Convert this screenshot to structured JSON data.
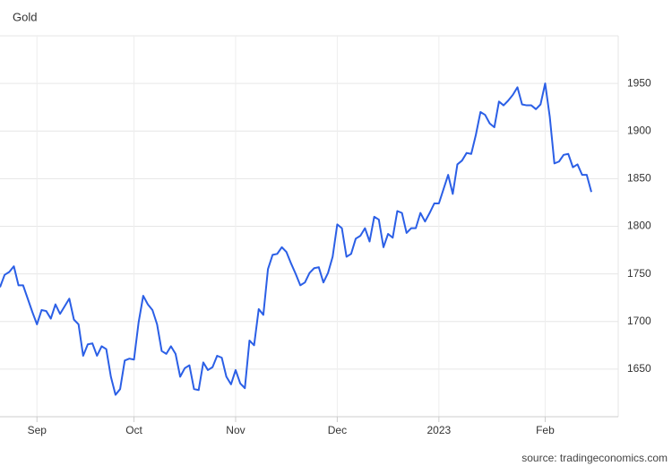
{
  "chart_data": {
    "type": "line",
    "title": "Gold",
    "source": "source: tradingeconomics.com",
    "categories": [
      null,
      null,
      null,
      null,
      null,
      null,
      null,
      null,
      "Sep",
      null,
      null,
      null,
      null,
      null,
      null,
      null,
      null,
      null,
      null,
      null,
      null,
      null,
      null,
      null,
      null,
      null,
      null,
      null,
      null,
      "Oct",
      null,
      null,
      null,
      null,
      null,
      null,
      null,
      null,
      null,
      null,
      null,
      null,
      null,
      null,
      null,
      null,
      null,
      null,
      null,
      null,
      null,
      "Nov",
      null,
      null,
      null,
      null,
      null,
      null,
      null,
      null,
      null,
      null,
      null,
      null,
      null,
      null,
      null,
      null,
      null,
      null,
      null,
      null,
      null,
      "Dec",
      null,
      null,
      null,
      null,
      null,
      null,
      null,
      null,
      null,
      null,
      null,
      null,
      null,
      null,
      null,
      null,
      null,
      null,
      null,
      null,
      null,
      "2023",
      null,
      null,
      null,
      null,
      null,
      null,
      null,
      null,
      null,
      null,
      null,
      null,
      null,
      null,
      null,
      null,
      null,
      null,
      null,
      null,
      null,
      null,
      "Feb",
      null,
      null,
      null,
      null,
      null,
      null,
      null,
      null,
      null,
      null
    ],
    "series": [
      {
        "name": "Gold",
        "color": "#2b5fe6",
        "values": [
          1736,
          1749,
          1752,
          1758,
          1738,
          1738,
          1724,
          1710,
          1697,
          1712,
          1711,
          1703,
          1718,
          1708,
          1716,
          1724,
          1702,
          1697,
          1664,
          1676,
          1677,
          1664,
          1674,
          1671,
          1642,
          1623,
          1629,
          1659,
          1661,
          1660,
          1699,
          1727,
          1718,
          1712,
          1697,
          1669,
          1666,
          1674,
          1666,
          1642,
          1651,
          1654,
          1629,
          1628,
          1657,
          1649,
          1652,
          1664,
          1662,
          1642,
          1634,
          1649,
          1635,
          1630,
          1680,
          1675,
          1713,
          1707,
          1755,
          1770,
          1771,
          1778,
          1773,
          1761,
          1750,
          1738,
          1741,
          1751,
          1756,
          1757,
          1741,
          1751,
          1768,
          1802,
          1798,
          1768,
          1771,
          1787,
          1790,
          1798,
          1784,
          1810,
          1807,
          1778,
          1792,
          1788,
          1816,
          1814,
          1793,
          1798,
          1798,
          1814,
          1805,
          1814,
          1824,
          1824,
          1839,
          1854,
          1834,
          1865,
          1869,
          1877,
          1876,
          1896,
          1920,
          1917,
          1908,
          1904,
          1931,
          1927,
          1932,
          1938,
          1946,
          1928,
          1927,
          1927,
          1923,
          1928,
          1950,
          1915,
          1866,
          1868,
          1875,
          1876,
          1862,
          1865,
          1854,
          1854,
          1836
        ]
      }
    ],
    "ylim": [
      1600,
      2000
    ],
    "yticks": [
      1650,
      1700,
      1750,
      1800,
      1850,
      1900,
      1950
    ],
    "grid": true
  }
}
